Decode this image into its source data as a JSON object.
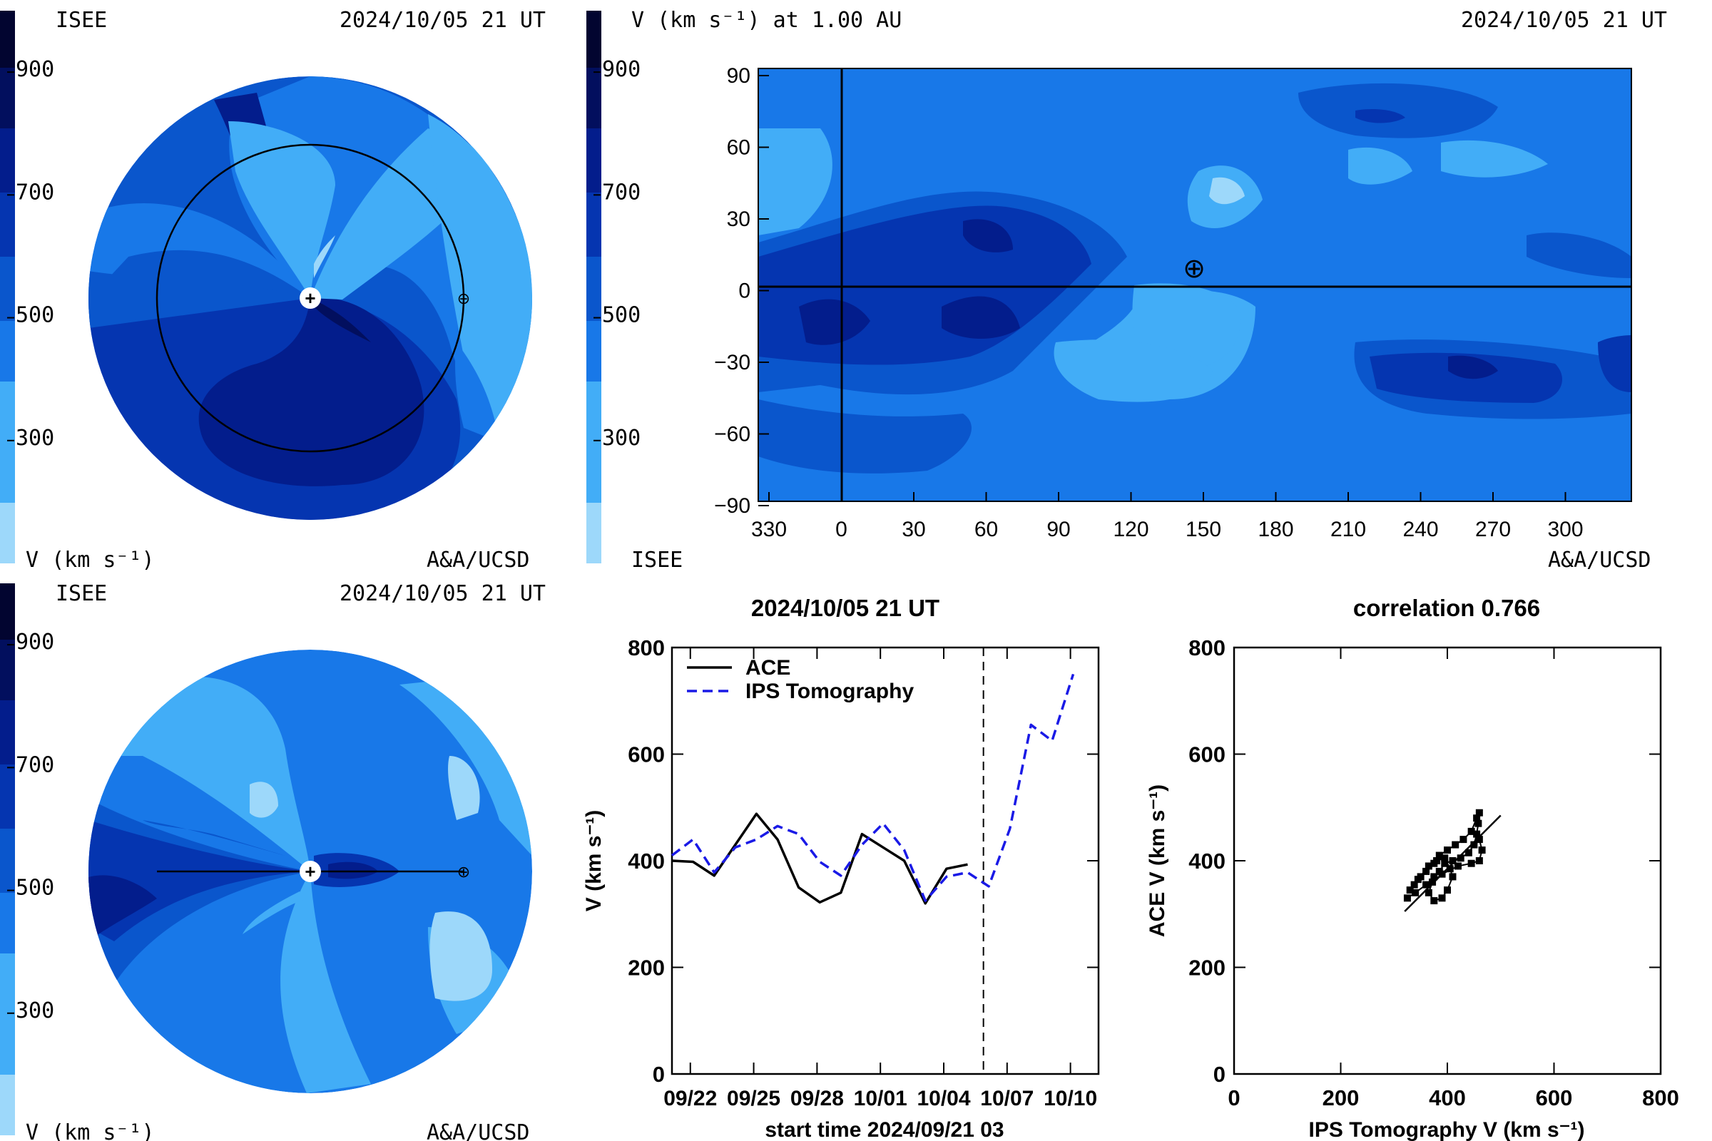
{
  "colors": {
    "scale": [
      "#9dd8fa",
      "#42adf7",
      "#1878e8",
      "#0a56cc",
      "#0535b0",
      "#031d8c",
      "#020f5e",
      "#020530"
    ],
    "ace_line": "#000000",
    "ips_line": "#1a1ae6",
    "axis": "#000000"
  },
  "colorbar": {
    "ticks": [
      "900",
      "700",
      "500",
      "300"
    ],
    "tick_values": [
      900,
      700,
      500,
      300
    ],
    "vmin": 100,
    "vmax": 1000
  },
  "panel_top_left": {
    "title_left": "ISEE",
    "date": "2024/10/05 21 UT",
    "footer_left": "V (km s⁻¹)",
    "footer_right": "A&A/UCSD",
    "sun_marker": "+",
    "earth_marker": "⊕"
  },
  "panel_bottom_left": {
    "title_left": "ISEE",
    "date": "2024/10/05 21 UT",
    "footer_left": "V (km s⁻¹)",
    "footer_right": "A&A/UCSD",
    "sun_marker": "+",
    "earth_marker": "⊕"
  },
  "panel_map": {
    "header_left": "V (km s⁻¹) at 1.00 AU",
    "date": "2024/10/05 21 UT",
    "footer_left": "ISEE",
    "footer_right": "A&A/UCSD",
    "earth_marker": "⊕",
    "y_ticks": [
      "90",
      "60",
      "30",
      "0",
      "−30",
      "−60",
      "−90"
    ],
    "x_ticks": [
      "330",
      "0",
      "30",
      "60",
      "90",
      "120",
      "150",
      "180",
      "210",
      "240",
      "270",
      "300"
    ]
  },
  "chart_data": [
    {
      "type": "line",
      "title": "2024/10/05 21 UT",
      "xlabel": "start time 2024/09/21 03",
      "ylabel": "V (km s⁻¹)",
      "ylim": [
        0,
        800
      ],
      "xlim_days": [
        0,
        20.2
      ],
      "x_tick_labels": [
        "09/22",
        "09/25",
        "09/28",
        "10/01",
        "10/04",
        "10/07",
        "10/10"
      ],
      "y_tick_labels": [
        "800",
        "600",
        "400",
        "200",
        "0"
      ],
      "y_tick_values": [
        800,
        600,
        400,
        200,
        0
      ],
      "current_time_marker": "2024/10/05 21 UT",
      "legend": [
        "ACE",
        "IPS Tomography"
      ],
      "series": [
        {
          "name": "ACE",
          "x": [
            "09/21",
            "09/22",
            "09/23",
            "09/24",
            "09/25",
            "09/26",
            "09/27",
            "09/28",
            "09/29",
            "09/30",
            "10/01",
            "10/02",
            "10/03",
            "10/04",
            "10/05"
          ],
          "values": [
            400,
            398,
            372,
            430,
            488,
            440,
            350,
            322,
            340,
            450,
            425,
            400,
            320,
            385,
            393
          ]
        },
        {
          "name": "IPS Tomography",
          "x": [
            "09/21",
            "09/22",
            "09/23",
            "09/24",
            "09/25",
            "09/26",
            "09/27",
            "09/28",
            "09/29",
            "09/30",
            "10/01",
            "10/02",
            "10/03",
            "10/04",
            "10/05",
            "10/06",
            "10/07",
            "10/08",
            "10/09",
            "10/10"
          ],
          "values": [
            410,
            440,
            378,
            425,
            440,
            465,
            450,
            398,
            372,
            430,
            470,
            420,
            325,
            370,
            378,
            352,
            460,
            655,
            625,
            750
          ]
        }
      ]
    },
    {
      "type": "scatter",
      "title": "correlation 0.766",
      "xlabel": "IPS Tomography V (km s⁻¹)",
      "ylabel": "ACE V (km s⁻¹)",
      "xlim": [
        0,
        800
      ],
      "ylim": [
        0,
        800
      ],
      "x_tick_labels": [
        "0",
        "200",
        "400",
        "600",
        "800"
      ],
      "y_tick_labels": [
        "800",
        "600",
        "400",
        "200",
        "0"
      ],
      "correlation": 0.766,
      "points": [
        [
          325,
          330
        ],
        [
          340,
          340
        ],
        [
          360,
          355
        ],
        [
          375,
          370
        ],
        [
          385,
          380
        ],
        [
          395,
          395
        ],
        [
          410,
          400
        ],
        [
          425,
          405
        ],
        [
          440,
          415
        ],
        [
          450,
          430
        ],
        [
          455,
          450
        ],
        [
          458,
          470
        ],
        [
          460,
          490
        ],
        [
          455,
          480
        ],
        [
          445,
          455
        ],
        [
          430,
          440
        ],
        [
          415,
          430
        ],
        [
          400,
          420
        ],
        [
          385,
          410
        ],
        [
          375,
          395
        ],
        [
          360,
          380
        ],
        [
          350,
          370
        ],
        [
          338,
          355
        ],
        [
          330,
          345
        ],
        [
          345,
          365
        ],
        [
          365,
          390
        ],
        [
          380,
          400
        ],
        [
          395,
          405
        ],
        [
          405,
          385
        ],
        [
          410,
          370
        ],
        [
          400,
          345
        ],
        [
          390,
          330
        ],
        [
          375,
          325
        ],
        [
          365,
          340
        ],
        [
          372,
          360
        ],
        [
          390,
          375
        ],
        [
          420,
          390
        ],
        [
          445,
          395
        ],
        [
          460,
          400
        ],
        [
          465,
          420
        ],
        [
          460,
          440
        ]
      ],
      "fit_line": [
        [
          320,
          305
        ],
        [
          500,
          485
        ]
      ]
    }
  ]
}
